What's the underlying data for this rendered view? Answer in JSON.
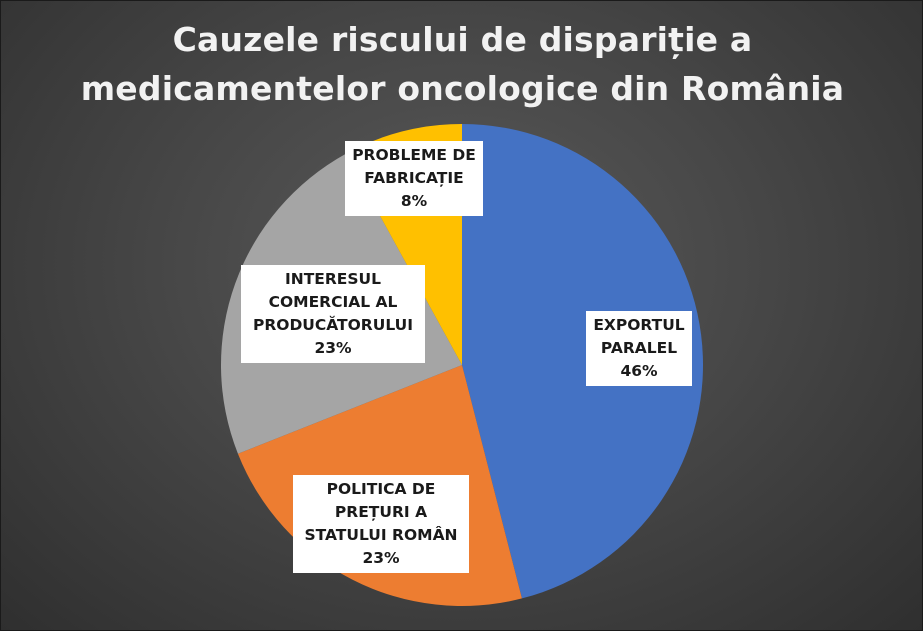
{
  "chart_data": {
    "type": "pie",
    "title_lines": [
      "Cauzele riscului de dispariție a",
      "medicamentelor oncologice din România"
    ],
    "slices": [
      {
        "label_lines": [
          "EXPORTUL",
          "PARALEL"
        ],
        "value": 46,
        "display": "46%",
        "color": "#4472c4"
      },
      {
        "label_lines": [
          "POLITICA DE",
          "PREȚURI A",
          "STATULUI ROMÂN"
        ],
        "value": 23,
        "display": "23%",
        "color": "#ed7d31"
      },
      {
        "label_lines": [
          "INTERESUL",
          "COMERCIAL AL",
          "PRODUCĂTORULUI"
        ],
        "value": 23,
        "display": "23%",
        "color": "#a5a5a5"
      },
      {
        "label_lines": [
          "PROBLEME DE",
          "FABRICAȚIE"
        ],
        "value": 8,
        "display": "8%",
        "color": "#ffc000"
      }
    ],
    "legend": "none"
  }
}
